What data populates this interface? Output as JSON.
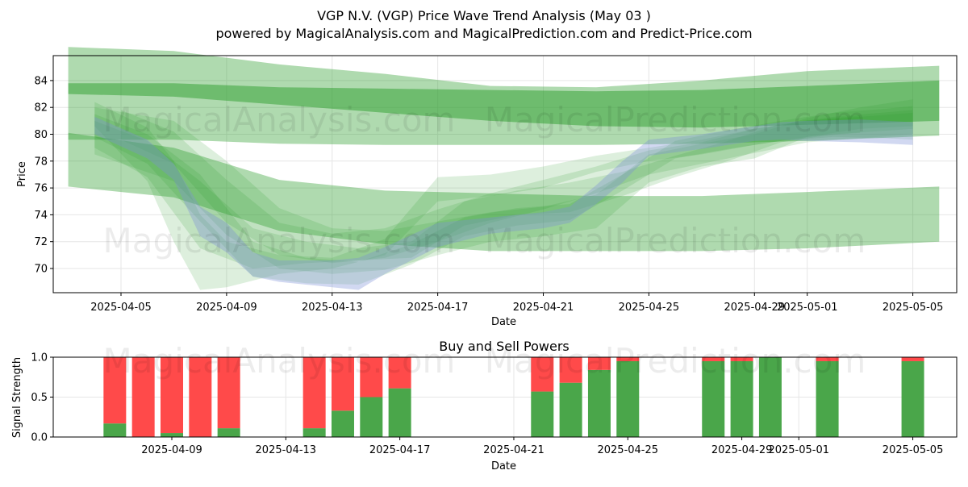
{
  "title_line1": "VGP N.V. (VGP) Price Wave Trend Analysis (May 03 )",
  "title_line2": "powered by MagicalAnalysis.com and MagicalPrediction.com and Predict-Price.com",
  "watermarks": [
    "MagicalAnalysis.com",
    "MagicalPrediction.com"
  ],
  "colors": {
    "band_green": "#2e9e2e",
    "band_blue": "#7b8fd6",
    "buy": "#4aa64a",
    "sell": "#ff4a4a",
    "grid": "#e6e6e6"
  },
  "chart_data": [
    {
      "type": "area",
      "title": "",
      "xlabel": "Date",
      "ylabel": "Price",
      "x_range": [
        "2025-04-02",
        "2025-05-07"
      ],
      "ylim": [
        68.2,
        85.8
      ],
      "grid": true,
      "x_ticks": [
        "2025-04-05",
        "2025-04-09",
        "2025-04-13",
        "2025-04-17",
        "2025-04-21",
        "2025-04-25",
        "2025-04-29",
        "2025-05-01",
        "2025-05-05"
      ],
      "y_ticks": [
        70,
        72,
        74,
        76,
        78,
        80,
        82,
        84
      ],
      "long_bands": [
        {
          "x": [
            "2025-04-03",
            "2025-04-07",
            "2025-04-11",
            "2025-04-15",
            "2025-04-19",
            "2025-04-23",
            "2025-04-27",
            "2025-05-01",
            "2025-05-06"
          ],
          "upper": [
            86.5,
            86.2,
            85.2,
            84.5,
            83.6,
            83.5,
            84.0,
            84.7,
            85.1
          ],
          "lower": [
            79.6,
            79.6,
            79.3,
            79.2,
            79.2,
            79.2,
            79.3,
            79.5,
            79.9
          ]
        },
        {
          "x": [
            "2025-04-03",
            "2025-04-07",
            "2025-04-11",
            "2025-04-15",
            "2025-04-19",
            "2025-04-23",
            "2025-04-27",
            "2025-05-01",
            "2025-05-06"
          ],
          "upper": [
            83.8,
            83.8,
            83.5,
            83.4,
            83.3,
            83.2,
            83.3,
            83.6,
            84.0
          ],
          "lower": [
            83.0,
            82.8,
            82.2,
            81.6,
            81.0,
            80.6,
            80.5,
            80.7,
            81.0
          ]
        },
        {
          "x": [
            "2025-04-03",
            "2025-04-07",
            "2025-04-11",
            "2025-04-15",
            "2025-04-19",
            "2025-04-23",
            "2025-04-27",
            "2025-05-01",
            "2025-05-06"
          ],
          "upper": [
            80.1,
            79.0,
            76.6,
            75.8,
            75.6,
            75.4,
            75.4,
            75.7,
            76.1
          ],
          "lower": [
            76.1,
            75.3,
            72.8,
            71.8,
            71.3,
            71.3,
            71.3,
            71.5,
            72.0
          ]
        }
      ],
      "wave_series": [
        {
          "x": [
            "2025-04-04",
            "2025-04-06",
            "2025-04-08",
            "2025-04-10",
            "2025-04-12",
            "2025-04-14",
            "2025-04-16",
            "2025-04-18",
            "2025-04-20",
            "2025-04-22",
            "2025-04-24",
            "2025-04-26",
            "2025-04-28",
            "2025-04-30",
            "2025-05-02",
            "2025-05-04",
            "2025-05-05"
          ],
          "upper": [
            81.5,
            80.0,
            77.0,
            72.0,
            70.8,
            70.5,
            71.8,
            73.8,
            74.5,
            74.8,
            77.0,
            79.5,
            80.3,
            81.0,
            81.6,
            81.9,
            82.1
          ],
          "lower": [
            79.8,
            77.8,
            73.5,
            69.4,
            68.9,
            68.8,
            70.3,
            72.4,
            73.2,
            73.6,
            75.8,
            78.2,
            78.9,
            79.5,
            79.8,
            79.7,
            79.6
          ]
        },
        {
          "x": [
            "2025-04-04",
            "2025-04-07",
            "2025-04-09",
            "2025-04-11",
            "2025-04-13",
            "2025-04-15",
            "2025-04-17",
            "2025-04-19",
            "2025-04-21",
            "2025-04-23",
            "2025-04-25",
            "2025-04-27",
            "2025-04-29",
            "2025-05-01",
            "2025-05-03",
            "2025-05-05"
          ],
          "upper": [
            82.0,
            81.0,
            78.0,
            74.5,
            73.0,
            72.8,
            73.5,
            74.2,
            74.6,
            75.5,
            78.5,
            79.3,
            80.0,
            81.2,
            82.0,
            82.6
          ],
          "lower": [
            78.5,
            76.5,
            72.5,
            70.0,
            69.6,
            69.9,
            71.0,
            72.0,
            72.4,
            73.0,
            76.4,
            77.6,
            78.2,
            79.8,
            80.4,
            80.6
          ]
        },
        {
          "x": [
            "2025-04-04",
            "2025-04-06",
            "2025-04-08",
            "2025-04-10",
            "2025-04-12",
            "2025-04-14",
            "2025-04-16",
            "2025-04-18",
            "2025-04-20",
            "2025-04-22",
            "2025-04-24",
            "2025-04-26",
            "2025-04-28",
            "2025-04-30",
            "2025-05-02",
            "2025-05-05"
          ],
          "upper": [
            81.0,
            79.5,
            76.5,
            73.0,
            72.0,
            71.5,
            72.0,
            75.0,
            75.8,
            76.4,
            77.2,
            78.4,
            79.5,
            80.8,
            81.3,
            81.8
          ],
          "lower": [
            79.0,
            76.8,
            71.5,
            70.0,
            70.4,
            70.6,
            70.8,
            73.2,
            74.0,
            74.2,
            75.4,
            76.8,
            78.0,
            79.4,
            80.0,
            80.4
          ]
        },
        {
          "x": [
            "2025-04-04",
            "2025-04-06",
            "2025-04-07",
            "2025-04-08",
            "2025-04-09",
            "2025-04-11",
            "2025-04-13",
            "2025-04-15",
            "2025-04-17",
            "2025-04-19",
            "2025-04-21",
            "2025-04-23",
            "2025-04-25",
            "2025-04-27",
            "2025-04-29",
            "2025-05-01",
            "2025-05-03"
          ],
          "upper": [
            82.4,
            80.5,
            78.0,
            74.0,
            72.0,
            71.0,
            70.8,
            72.2,
            76.8,
            77.0,
            77.6,
            78.4,
            79.0,
            79.6,
            80.4,
            81.0,
            81.4
          ],
          "lower": [
            80.6,
            76.5,
            72.0,
            68.4,
            68.6,
            69.6,
            70.0,
            71.0,
            75.0,
            75.4,
            76.0,
            77.2,
            78.0,
            78.5,
            79.2,
            79.8,
            80.1
          ]
        },
        {
          "x": [
            "2025-04-05",
            "2025-04-07",
            "2025-04-09",
            "2025-04-11",
            "2025-04-13",
            "2025-04-15",
            "2025-04-17",
            "2025-04-19",
            "2025-04-21",
            "2025-04-23",
            "2025-04-25",
            "2025-04-27",
            "2025-04-29",
            "2025-05-01",
            "2025-05-05"
          ],
          "upper": [
            81.8,
            80.2,
            76.6,
            73.4,
            72.6,
            73.0,
            74.4,
            75.6,
            76.6,
            77.6,
            78.8,
            79.4,
            80.4,
            81.0,
            81.6
          ],
          "lower": [
            79.6,
            77.8,
            73.4,
            71.0,
            70.4,
            70.8,
            72.0,
            73.4,
            74.4,
            75.6,
            77.0,
            77.8,
            78.6,
            79.4,
            80.0
          ]
        }
      ],
      "price_band": {
        "x": [
          "2025-04-04",
          "2025-04-06",
          "2025-04-07",
          "2025-04-08",
          "2025-04-09",
          "2025-04-10",
          "2025-04-11",
          "2025-04-13",
          "2025-04-14",
          "2025-04-15",
          "2025-04-17",
          "2025-04-19",
          "2025-04-21",
          "2025-04-22",
          "2025-04-23",
          "2025-04-24",
          "2025-04-25",
          "2025-04-27",
          "2025-04-29",
          "2025-04-30",
          "2025-05-01",
          "2025-05-03",
          "2025-05-05"
        ],
        "upper": [
          81.3,
          79.6,
          77.8,
          74.6,
          73.4,
          71.2,
          70.6,
          70.6,
          70.8,
          71.6,
          73.4,
          73.8,
          74.2,
          74.6,
          76.2,
          78.0,
          79.6,
          80.0,
          80.6,
          80.9,
          81.0,
          81.1,
          80.9
        ],
        "lower": [
          80.0,
          78.2,
          76.6,
          72.4,
          71.2,
          69.4,
          69.0,
          68.6,
          68.4,
          69.6,
          71.6,
          72.6,
          73.0,
          73.4,
          74.8,
          76.4,
          78.4,
          78.9,
          79.5,
          79.6,
          79.5,
          79.4,
          79.2
        ]
      }
    },
    {
      "type": "bar",
      "title": "Buy and Sell Powers",
      "xlabel": "Date",
      "ylabel": "Signal Strength",
      "ylim": [
        0.0,
        1.0
      ],
      "y_ticks": [
        "0.0",
        "0.5",
        "1.0"
      ],
      "x_ticks": [
        "2025-04-09",
        "2025-04-13",
        "2025-04-17",
        "2025-04-21",
        "2025-04-25",
        "2025-04-29",
        "2025-05-01",
        "2025-05-05"
      ],
      "grid": true,
      "categories": [
        "2025-04-07",
        "2025-04-08",
        "2025-04-09",
        "2025-04-10",
        "2025-04-11",
        "2025-04-14",
        "2025-04-15",
        "2025-04-16",
        "2025-04-17",
        "2025-04-22",
        "2025-04-23",
        "2025-04-24",
        "2025-04-25",
        "2025-04-28",
        "2025-04-29",
        "2025-04-30",
        "2025-05-02",
        "2025-05-05"
      ],
      "series": [
        {
          "values": [
            0.17,
            0.0,
            0.05,
            0.0,
            0.11,
            0.11,
            0.33,
            0.5,
            0.61,
            0.57,
            0.68,
            0.84,
            0.95,
            0.95,
            0.95,
            1.0,
            0.95,
            0.95
          ]
        },
        {
          "values": [
            0.83,
            1.0,
            0.95,
            1.0,
            0.89,
            0.89,
            0.67,
            0.5,
            0.39,
            0.43,
            0.32,
            0.16,
            0.05,
            0.05,
            0.05,
            0.0,
            0.05,
            0.05
          ]
        }
      ]
    }
  ]
}
